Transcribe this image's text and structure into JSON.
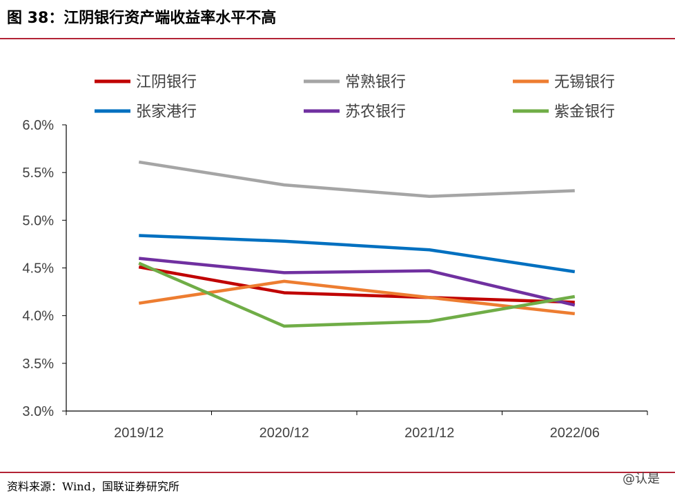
{
  "header": {
    "title": "图 38：江阴银行资产端收益率水平不高"
  },
  "footer": {
    "source": "资料来源：Wind，国联证券研究所",
    "watermark": "@认是"
  },
  "chart_data": {
    "type": "line",
    "categories": [
      "2019/12",
      "2020/12",
      "2021/12",
      "2022/06"
    ],
    "ylim": [
      3.0,
      6.0
    ],
    "yticks": [
      "3.0%",
      "3.5%",
      "4.0%",
      "4.5%",
      "5.0%",
      "5.5%",
      "6.0%"
    ],
    "xlabel": "",
    "ylabel": "",
    "legend_position": "top",
    "series": [
      {
        "name": "江阴银行",
        "color": "#c00000",
        "values": [
          4.51,
          4.24,
          4.19,
          4.14
        ]
      },
      {
        "name": "常熟银行",
        "color": "#a5a5a5",
        "values": [
          5.61,
          5.37,
          5.25,
          5.31
        ]
      },
      {
        "name": "无锡银行",
        "color": "#ed7d31",
        "values": [
          4.13,
          4.36,
          4.19,
          4.02
        ]
      },
      {
        "name": "张家港行",
        "color": "#0070c0",
        "values": [
          4.84,
          4.78,
          4.69,
          4.46
        ]
      },
      {
        "name": "苏农银行",
        "color": "#7030a0",
        "values": [
          4.6,
          4.45,
          4.47,
          4.11
        ]
      },
      {
        "name": "紫金银行",
        "color": "#70ad47",
        "values": [
          4.55,
          3.89,
          3.94,
          4.2
        ]
      }
    ]
  }
}
